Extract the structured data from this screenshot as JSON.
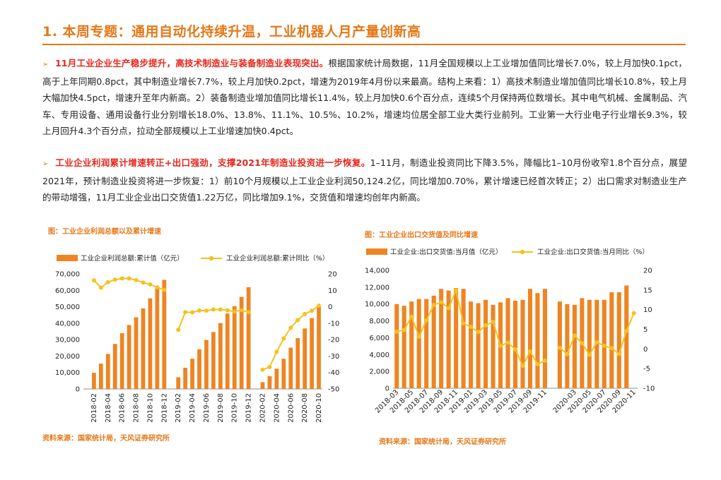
{
  "header": {
    "title": "1. 本周专题：通用自动化持续升温，工业机器人月产量创新高"
  },
  "paragraphs": [
    {
      "bullet": "➢",
      "lead": "11月工业企业生产稳步提升，高技术制造业与装备制造业表现突出。",
      "body": "根据国家统计局数据，11月全国规模以上工业增加值同比增长7.0%，较上月加快0.1pct，高于上年同期0.8pct，其中制造业增长7.7%，较上月加快0.2pct，增速为2019年4月份以来最高。结构上来看：1）高技术制造业增加值同比增长10.8%，较上月大幅加快4.5pct，增速升至年内新高。2）装备制造业增加值同比增长11.4%，较上月加快0.6个百分点，连续5个月保持两位数增长。其中电气机械、金属制品、汽车、专用设备、通用设备行业分别增长18.0%、13.8%、11.1%、10.5%、10.2%，增速均位居全部工业大类行业前列。工业第一大行业电子行业增长9.3%，较上月回升4.3个百分点，拉动全部规模以上工业增速加快0.4pct。"
    },
    {
      "bullet": "➢",
      "lead": "工业企业利润累计增速转正+出口强劲，支撑2021年制造业投资进一步恢复。",
      "body": "1–11月，制造业投资同比下降3.5%，降幅比1–10月份收窄1.8个百分点，展望2021年，预计制造业投资将进一步恢复：1）前10个月规模以上工业企业利润50,124.2亿，同比增加0.70%，累计增速已经首次转正；2）出口需求对制造业生产的带动增强，11月工业企业出口交货值1.22万亿，同比增加9.1%，交货值和增速均创年内新高。"
    }
  ],
  "figures": {
    "fig1": {
      "title": "图：工业企业利润总额以及累计增速",
      "source": "资料来源：国家统计局，天风证券研究所"
    },
    "fig2": {
      "title": "图：工业企业出口交货值及同比增速",
      "source": "资料来源：国家统计局，天风证券研究所"
    }
  },
  "colors": {
    "accent": "#e67817",
    "lead_red": "#e8261c",
    "bar": "#ee8422",
    "line": "#f7c11f"
  },
  "chart_data": [
    {
      "type": "bar",
      "title": "",
      "categories": [
        "2018-01",
        "2018-02",
        "2018-03",
        "2018-04",
        "2018-05",
        "2018-06",
        "2018-07",
        "2018-08",
        "2018-09",
        "2018-10",
        "2018-11",
        "2018-12",
        "2019-01",
        "2019-02",
        "2019-03",
        "2019-04",
        "2019-05",
        "2019-06",
        "2019-07",
        "2019-08",
        "2019-09",
        "2019-10",
        "2019-11",
        "2019-12",
        "2020-01",
        "2020-02",
        "2020-03",
        "2020-04",
        "2020-05",
        "2020-06",
        "2020-07",
        "2020-08",
        "2020-09",
        "2020-10"
      ],
      "tick_labels": [
        "2018-02",
        "2018-04",
        "2018-06",
        "2018-08",
        "2018-10",
        "2018-12",
        "2019-02",
        "2019-04",
        "2019-06",
        "2019-08",
        "2019-10",
        "2019-12",
        "2020-02",
        "2020-04",
        "2020-06",
        "2020-08",
        "2020-10"
      ],
      "series": [
        {
          "name": "工业企业利润总额:累计值（亿元）",
          "type": "bar",
          "axis": "left",
          "values": [
            null,
            9800,
            15400,
            21300,
            27400,
            33900,
            38900,
            43600,
            49000,
            55100,
            61500,
            66400,
            null,
            7100,
            12900,
            18400,
            24100,
            29800,
            34600,
            40100,
            45900,
            50400,
            56000,
            61900,
            null,
            4100,
            7800,
            12300,
            18400,
            25100,
            30900,
            36800,
            43100,
            50100
          ]
        },
        {
          "name": "工业企业利润总额:累计同比（%）",
          "type": "line",
          "axis": "right",
          "values": [
            null,
            16.1,
            11.6,
            15.0,
            16.5,
            17.2,
            17.2,
            16.2,
            14.7,
            13.6,
            11.8,
            10.3,
            null,
            -14.0,
            -3.3,
            -3.4,
            -2.3,
            -2.4,
            -1.7,
            -1.7,
            -2.1,
            -2.9,
            -2.1,
            -3.3,
            null,
            -38.3,
            -36.7,
            -27.4,
            -19.3,
            -12.8,
            -8.1,
            -4.4,
            -2.4,
            0.7
          ]
        }
      ],
      "y_left": {
        "min": 0,
        "max": 70000,
        "ticks": [
          "0",
          "10,000",
          "20,000",
          "30,000",
          "40,000",
          "50,000",
          "60,000",
          "70,000"
        ]
      },
      "y_right": {
        "min": -50,
        "max": 20,
        "ticks": [
          "-50",
          "-40",
          "-30",
          "-20",
          "-10",
          "0",
          "10",
          "20"
        ]
      },
      "legend": "top"
    },
    {
      "type": "bar",
      "title": "",
      "categories": [
        "2018-03",
        "2018-04",
        "2018-05",
        "2018-06",
        "2018-07",
        "2018-08",
        "2018-09",
        "2018-10",
        "2018-11",
        "2018-12",
        "2019-01",
        "2019-02",
        "2019-03",
        "2019-04",
        "2019-05",
        "2019-06",
        "2019-07",
        "2019-08",
        "2019-09",
        "2019-10",
        "2019-11",
        "2019-12",
        "2020-01",
        "2020-02",
        "2020-03",
        "2020-04",
        "2020-05",
        "2020-06",
        "2020-07",
        "2020-08",
        "2020-09",
        "2020-10",
        "2020-11"
      ],
      "tick_labels": [
        "2018-03",
        "2018-05",
        "2018-07",
        "2018-09",
        "2018-11",
        "2019-01",
        "2019-03",
        "2019-05",
        "2019-07",
        "2019-09",
        "2019-11",
        "2020-03",
        "2020-05",
        "2020-07",
        "2020-09",
        "2020-11"
      ],
      "series": [
        {
          "name": "工业企业:出口交货值:当月值（亿元）",
          "type": "bar",
          "axis": "left",
          "values": [
            10000,
            9800,
            10300,
            10600,
            10600,
            11000,
            11800,
            11600,
            11900,
            11800,
            10300,
            10100,
            10500,
            9900,
            10200,
            10700,
            10400,
            10500,
            11800,
            11300,
            11800,
            null,
            10300,
            10000,
            9900,
            10700,
            10500,
            10500,
            10500,
            11400,
            11400,
            12200,
            null
          ]
        },
        {
          "name": "工业企业:出口交货值:当月同比（%）",
          "type": "line",
          "axis": "right",
          "values": [
            4.4,
            4.8,
            8.2,
            3.1,
            7.3,
            11.2,
            11.9,
            10.4,
            14.9,
            6.5,
            5.6,
            4.3,
            6.0,
            6.9,
            0.8,
            1.6,
            -0.1,
            -4.3,
            -0.6,
            -3.9,
            -3.0,
            null,
            0.3,
            -1.3,
            3.4,
            1.5,
            -1.5,
            1.7,
            0.8,
            0.2,
            -1.3,
            4.6,
            9.1
          ]
        }
      ],
      "y_left": {
        "min": 0,
        "max": 14000,
        "ticks": [
          "0",
          "2,000",
          "4,000",
          "6,000",
          "8,000",
          "10,000",
          "12,000",
          "14,000"
        ]
      },
      "y_right": {
        "min": -10,
        "max": 20,
        "ticks": [
          "-10",
          "-5",
          "0",
          "5",
          "10",
          "15",
          "20"
        ]
      },
      "legend": "top"
    }
  ]
}
